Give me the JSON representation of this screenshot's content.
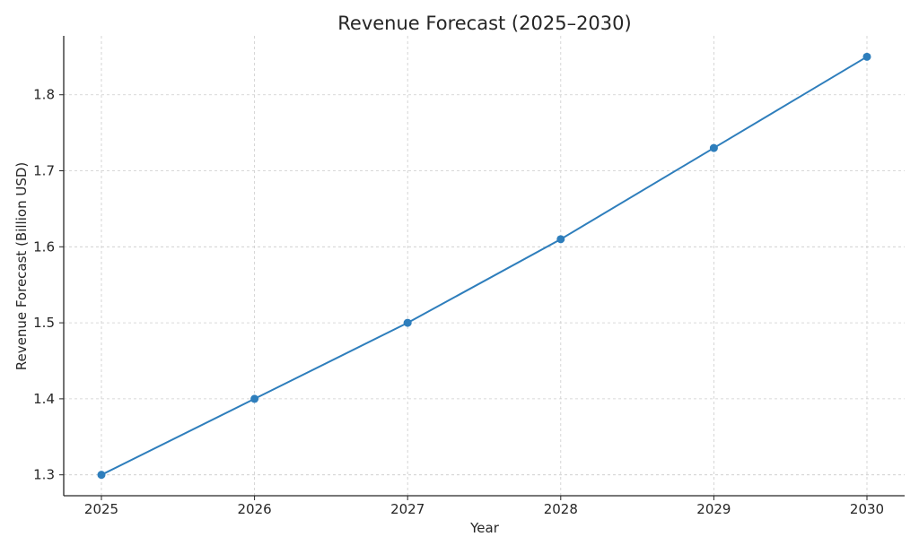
{
  "chart_data": {
    "type": "line",
    "title": "Revenue Forecast (2025–2030)",
    "xlabel": "Year",
    "ylabel": "Revenue Forecast (Billion USD)",
    "categories": [
      "2025",
      "2026",
      "2027",
      "2028",
      "2029",
      "2030"
    ],
    "series": [
      {
        "name": "Revenue Forecast",
        "values": [
          1.3,
          1.4,
          1.5,
          1.61,
          1.73,
          1.85
        ],
        "color": "#2e7ebc",
        "marker": "circle"
      }
    ],
    "yticks": [
      "1.3",
      "1.4",
      "1.5",
      "1.6",
      "1.7",
      "1.8"
    ],
    "ylim": [
      1.2725,
      1.8775
    ],
    "grid": true,
    "legend": "none"
  }
}
